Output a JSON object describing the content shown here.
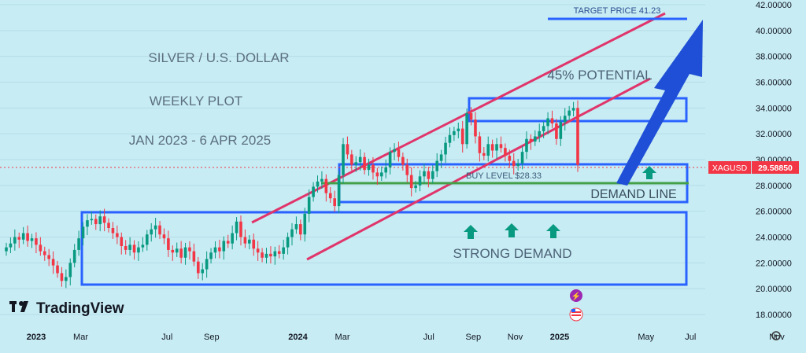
{
  "chart_data": {
    "type": "candlestick",
    "title_lines": [
      "SILVER / U.S. DOLLAR",
      "WEEKLY PLOT",
      "JAN 2023 - 6 APR 2025"
    ],
    "symbol": "XAGUSD",
    "last_price": "29.58850",
    "y_ticks": [
      "42.00000",
      "40.00000",
      "38.00000",
      "36.00000",
      "34.00000",
      "32.00000",
      "30.00000",
      "28.00000",
      "26.00000",
      "24.00000",
      "22.00000",
      "20.00000",
      "18.00000"
    ],
    "y_tick_values": [
      42,
      40,
      38,
      36,
      34,
      32,
      30,
      28,
      26,
      24,
      22,
      20,
      18
    ],
    "x_ticks": [
      {
        "label": "2023",
        "t": 0.0,
        "bold": true
      },
      {
        "label": "Mar",
        "t": 0.17,
        "bold": false
      },
      {
        "label": "Jul",
        "t": 0.5,
        "bold": false
      },
      {
        "label": "Sep",
        "t": 0.67,
        "bold": false
      },
      {
        "label": "2024",
        "t": 1.0,
        "bold": true
      },
      {
        "label": "Mar",
        "t": 1.17,
        "bold": false
      },
      {
        "label": "Jul",
        "t": 1.5,
        "bold": false
      },
      {
        "label": "Sep",
        "t": 1.67,
        "bold": false
      },
      {
        "label": "Nov",
        "t": 1.83,
        "bold": false
      },
      {
        "label": "2025",
        "t": 2.0,
        "bold": true
      },
      {
        "label": "May",
        "t": 2.33,
        "bold": false
      },
      {
        "label": "Jul",
        "t": 2.5,
        "bold": false
      },
      {
        "label": "Nov",
        "t": 2.83,
        "bold": false
      }
    ],
    "closes": [
      23.2,
      23.5,
      24.0,
      23.8,
      24.3,
      23.7,
      23.9,
      23.4,
      22.9,
      22.6,
      22.3,
      21.8,
      21.2,
      20.6,
      20.9,
      22.0,
      23.0,
      23.9,
      24.8,
      25.3,
      25.4,
      25.0,
      25.6,
      25.1,
      24.7,
      24.3,
      24.0,
      23.3,
      23.0,
      23.4,
      22.8,
      23.2,
      23.4,
      24.2,
      24.6,
      24.9,
      24.2,
      23.9,
      23.0,
      22.8,
      23.1,
      22.4,
      23.2,
      22.9,
      22.1,
      21.2,
      21.5,
      22.3,
      22.8,
      23.2,
      22.9,
      23.7,
      23.5,
      24.3,
      25.2,
      24.0,
      23.5,
      23.8,
      23.1,
      22.8,
      22.4,
      22.7,
      22.5,
      22.9,
      22.7,
      23.2,
      24.0,
      24.6,
      25.0,
      24.2,
      25.8,
      27.1,
      27.9,
      28.3,
      28.5,
      27.4,
      27.0,
      26.4,
      28.8,
      31.2,
      30.4,
      29.6,
      29.8,
      30.2,
      29.2,
      29.6,
      29.0,
      28.7,
      29.0,
      29.4,
      30.6,
      30.8,
      30.2,
      29.6,
      28.8,
      27.8,
      28.0,
      28.7,
      29.1,
      28.5,
      29.1,
      29.9,
      30.4,
      31.3,
      31.9,
      32.2,
      32.4,
      31.2,
      33.6,
      33.1,
      31.8,
      30.5,
      30.3,
      31.2,
      30.7,
      31.2,
      30.9,
      30.3,
      29.9,
      29.5,
      29.7,
      30.6,
      31.6,
      31.4,
      31.8,
      32.2,
      32.6,
      33.2,
      32.8,
      31.6,
      32.9,
      33.4,
      33.8,
      34.0,
      29.59
    ],
    "support_level": 28.33,
    "annotations": {
      "target": "TARGET PRICE 41.23",
      "potential": "45% POTENTIAL",
      "buy_level": "BUY LEVEL $28.33",
      "demand_line": "DEMAND LINE",
      "strong_demand": "STRONG DEMAND"
    },
    "colors": {
      "up": "#089981",
      "down": "#f23645",
      "channel": "#e0356b",
      "box": "#2962ff",
      "demand_line": "#43a047",
      "arrow_up": "#089981",
      "big_arrow": "#1f4fd6",
      "price_tag": "#f23645",
      "background": "#c7ecf4"
    }
  },
  "branding": {
    "name": "TradingView"
  }
}
